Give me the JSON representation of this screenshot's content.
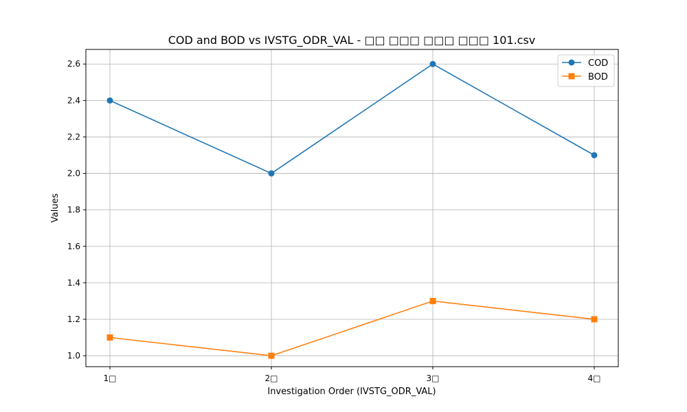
{
  "chart_data": {
    "type": "line",
    "title": "COD and BOD vs IVSTG_ODR_VAL -  □□ □□□ □□□ □□□ 101.csv",
    "xlabel": "Investigation Order (IVSTG_ODR_VAL)",
    "ylabel": "Values",
    "categories": [
      "1□",
      "2□",
      "3□",
      "4□"
    ],
    "ylim": [
      0.94,
      2.68
    ],
    "yticks": [
      "1.0",
      "1.2",
      "1.4",
      "1.6",
      "1.8",
      "2.0",
      "2.2",
      "2.4",
      "2.6"
    ],
    "grid": true,
    "legend_position": "top-right",
    "series": [
      {
        "name": "COD",
        "values": [
          2.4,
          2.0,
          2.6,
          2.1
        ],
        "color": "#1f77b4",
        "marker": "circle"
      },
      {
        "name": "BOD",
        "values": [
          1.1,
          1.0,
          1.3,
          1.2
        ],
        "color": "#ff7f0e",
        "marker": "square"
      }
    ]
  }
}
